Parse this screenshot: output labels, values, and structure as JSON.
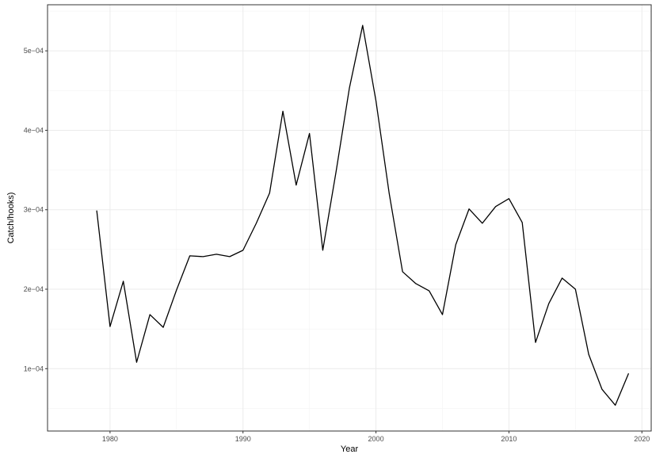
{
  "chart_data": {
    "type": "line",
    "xlabel": "Year",
    "ylabel": "Catch/hooks)",
    "xlim": [
      1975.3,
      2020.7
    ],
    "ylim": [
      2.15e-05,
      0.000558
    ],
    "x_ticks": [
      1980,
      1990,
      2000,
      2010,
      2020
    ],
    "x_tick_labels": [
      "1980",
      "1990",
      "2000",
      "2010",
      "2020"
    ],
    "y_ticks": [
      0.0001,
      0.0002,
      0.0003,
      0.0004,
      0.0005
    ],
    "y_tick_labels": [
      "1e−04",
      "2e−04",
      "3e−04",
      "4e−04",
      "5e−04"
    ],
    "grid": true,
    "series": [
      {
        "color": "#000000",
        "x": [
          1979,
          1980,
          1981,
          1982,
          1983,
          1984,
          1985,
          1986,
          1987,
          1988,
          1989,
          1990,
          1991,
          1992,
          1993,
          1994,
          1995,
          1996,
          1997,
          1998,
          1999,
          2000,
          2001,
          2002,
          2003,
          2004,
          2005,
          2006,
          2007,
          2008,
          2009,
          2010,
          2011,
          2012,
          2013,
          2014,
          2015,
          2016,
          2017,
          2018,
          2019
        ],
        "values": [
          0.000299,
          0.000153,
          0.00021,
          0.000108,
          0.000168,
          0.000152,
          0.000199,
          0.000242,
          0.000241,
          0.000244,
          0.000241,
          0.000249,
          0.000283,
          0.000321,
          0.000424,
          0.000331,
          0.000396,
          0.000249,
          0.000348,
          0.000453,
          0.000532,
          0.000437,
          0.00032,
          0.000222,
          0.000207,
          0.000198,
          0.000168,
          0.000256,
          0.000301,
          0.000283,
          0.000304,
          0.000314,
          0.000284,
          0.000133,
          0.000182,
          0.000214,
          0.0002,
          0.000118,
          7.4e-05,
          5.4e-05,
          9.4e-05
        ]
      }
    ]
  }
}
